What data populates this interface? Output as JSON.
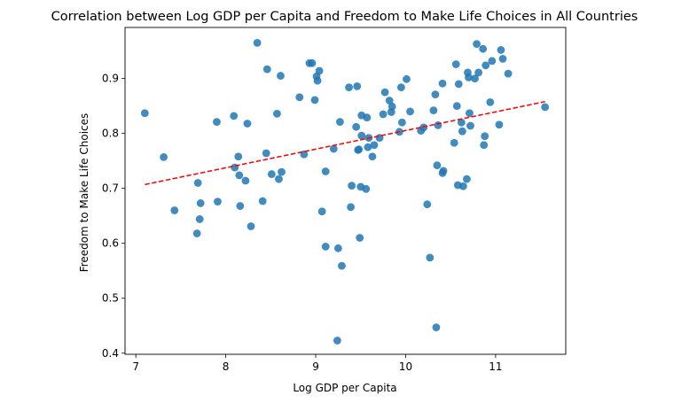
{
  "chart_data": {
    "type": "scatter",
    "title": "Correlation between Log GDP per Capita and Freedom to Make Life Choices in All Countries",
    "xlabel": "Log GDP per Capita",
    "ylabel": "Freedom to Make Life Choices",
    "xlim": [
      6.88,
      11.78
    ],
    "ylim": [
      0.398,
      0.993
    ],
    "xticks": [
      7,
      8,
      9,
      10,
      11
    ],
    "yticks": [
      0.4,
      0.5,
      0.6,
      0.7,
      0.8,
      0.9
    ],
    "grid": false,
    "point_color": "#1f77b4",
    "trend_color": "#ff0000",
    "trendline": {
      "x": [
        7.1,
        11.55
      ],
      "y": [
        0.707,
        0.858
      ]
    },
    "points": [
      [
        7.1,
        0.837
      ],
      [
        7.31,
        0.757
      ],
      [
        7.43,
        0.66
      ],
      [
        7.68,
        0.618
      ],
      [
        7.69,
        0.71
      ],
      [
        7.71,
        0.644
      ],
      [
        7.72,
        0.673
      ],
      [
        7.9,
        0.821
      ],
      [
        7.91,
        0.676
      ],
      [
        8.09,
        0.832
      ],
      [
        8.1,
        0.738
      ],
      [
        8.14,
        0.758
      ],
      [
        8.15,
        0.724
      ],
      [
        8.16,
        0.668
      ],
      [
        8.22,
        0.714
      ],
      [
        8.24,
        0.818
      ],
      [
        8.28,
        0.631
      ],
      [
        8.35,
        0.965
      ],
      [
        8.41,
        0.677
      ],
      [
        8.45,
        0.764
      ],
      [
        8.46,
        0.917
      ],
      [
        8.51,
        0.726
      ],
      [
        8.57,
        0.836
      ],
      [
        8.59,
        0.717
      ],
      [
        8.61,
        0.905
      ],
      [
        8.62,
        0.73
      ],
      [
        8.82,
        0.866
      ],
      [
        8.87,
        0.762
      ],
      [
        8.93,
        0.928
      ],
      [
        8.96,
        0.928
      ],
      [
        8.99,
        0.861
      ],
      [
        9.01,
        0.904
      ],
      [
        9.02,
        0.896
      ],
      [
        9.04,
        0.914
      ],
      [
        9.07,
        0.658
      ],
      [
        9.11,
        0.731
      ],
      [
        9.11,
        0.594
      ],
      [
        9.2,
        0.772
      ],
      [
        9.24,
        0.423
      ],
      [
        9.25,
        0.591
      ],
      [
        9.27,
        0.821
      ],
      [
        9.29,
        0.559
      ],
      [
        9.37,
        0.884
      ],
      [
        9.39,
        0.666
      ],
      [
        9.4,
        0.705
      ],
      [
        9.45,
        0.812
      ],
      [
        9.46,
        0.886
      ],
      [
        9.47,
        0.77
      ],
      [
        9.48,
        0.771
      ],
      [
        9.49,
        0.61
      ],
      [
        9.5,
        0.703
      ],
      [
        9.51,
        0.833
      ],
      [
        9.51,
        0.796
      ],
      [
        9.56,
        0.699
      ],
      [
        9.57,
        0.829
      ],
      [
        9.58,
        0.775
      ],
      [
        9.59,
        0.792
      ],
      [
        9.63,
        0.758
      ],
      [
        9.65,
        0.779
      ],
      [
        9.71,
        0.792
      ],
      [
        9.75,
        0.835
      ],
      [
        9.77,
        0.875
      ],
      [
        9.82,
        0.86
      ],
      [
        9.84,
        0.839
      ],
      [
        9.85,
        0.849
      ],
      [
        9.93,
        0.803
      ],
      [
        9.95,
        0.884
      ],
      [
        9.96,
        0.82
      ],
      [
        10.01,
        0.899
      ],
      [
        10.05,
        0.84
      ],
      [
        10.17,
        0.805
      ],
      [
        10.2,
        0.811
      ],
      [
        10.24,
        0.671
      ],
      [
        10.27,
        0.574
      ],
      [
        10.31,
        0.842
      ],
      [
        10.33,
        0.871
      ],
      [
        10.34,
        0.447
      ],
      [
        10.35,
        0.742
      ],
      [
        10.36,
        0.815
      ],
      [
        10.41,
        0.891
      ],
      [
        10.41,
        0.728
      ],
      [
        10.42,
        0.732
      ],
      [
        10.54,
        0.783
      ],
      [
        10.56,
        0.926
      ],
      [
        10.57,
        0.85
      ],
      [
        10.58,
        0.706
      ],
      [
        10.59,
        0.89
      ],
      [
        10.62,
        0.82
      ],
      [
        10.63,
        0.804
      ],
      [
        10.64,
        0.704
      ],
      [
        10.68,
        0.717
      ],
      [
        10.69,
        0.911
      ],
      [
        10.7,
        0.902
      ],
      [
        10.71,
        0.837
      ],
      [
        10.72,
        0.814
      ],
      [
        10.77,
        0.9
      ],
      [
        10.79,
        0.963
      ],
      [
        10.81,
        0.911
      ],
      [
        10.86,
        0.954
      ],
      [
        10.87,
        0.779
      ],
      [
        10.88,
        0.795
      ],
      [
        10.89,
        0.924
      ],
      [
        10.94,
        0.857
      ],
      [
        10.96,
        0.932
      ],
      [
        11.04,
        0.816
      ],
      [
        11.06,
        0.952
      ],
      [
        11.08,
        0.936
      ],
      [
        11.14,
        0.909
      ],
      [
        11.55,
        0.848
      ]
    ]
  }
}
